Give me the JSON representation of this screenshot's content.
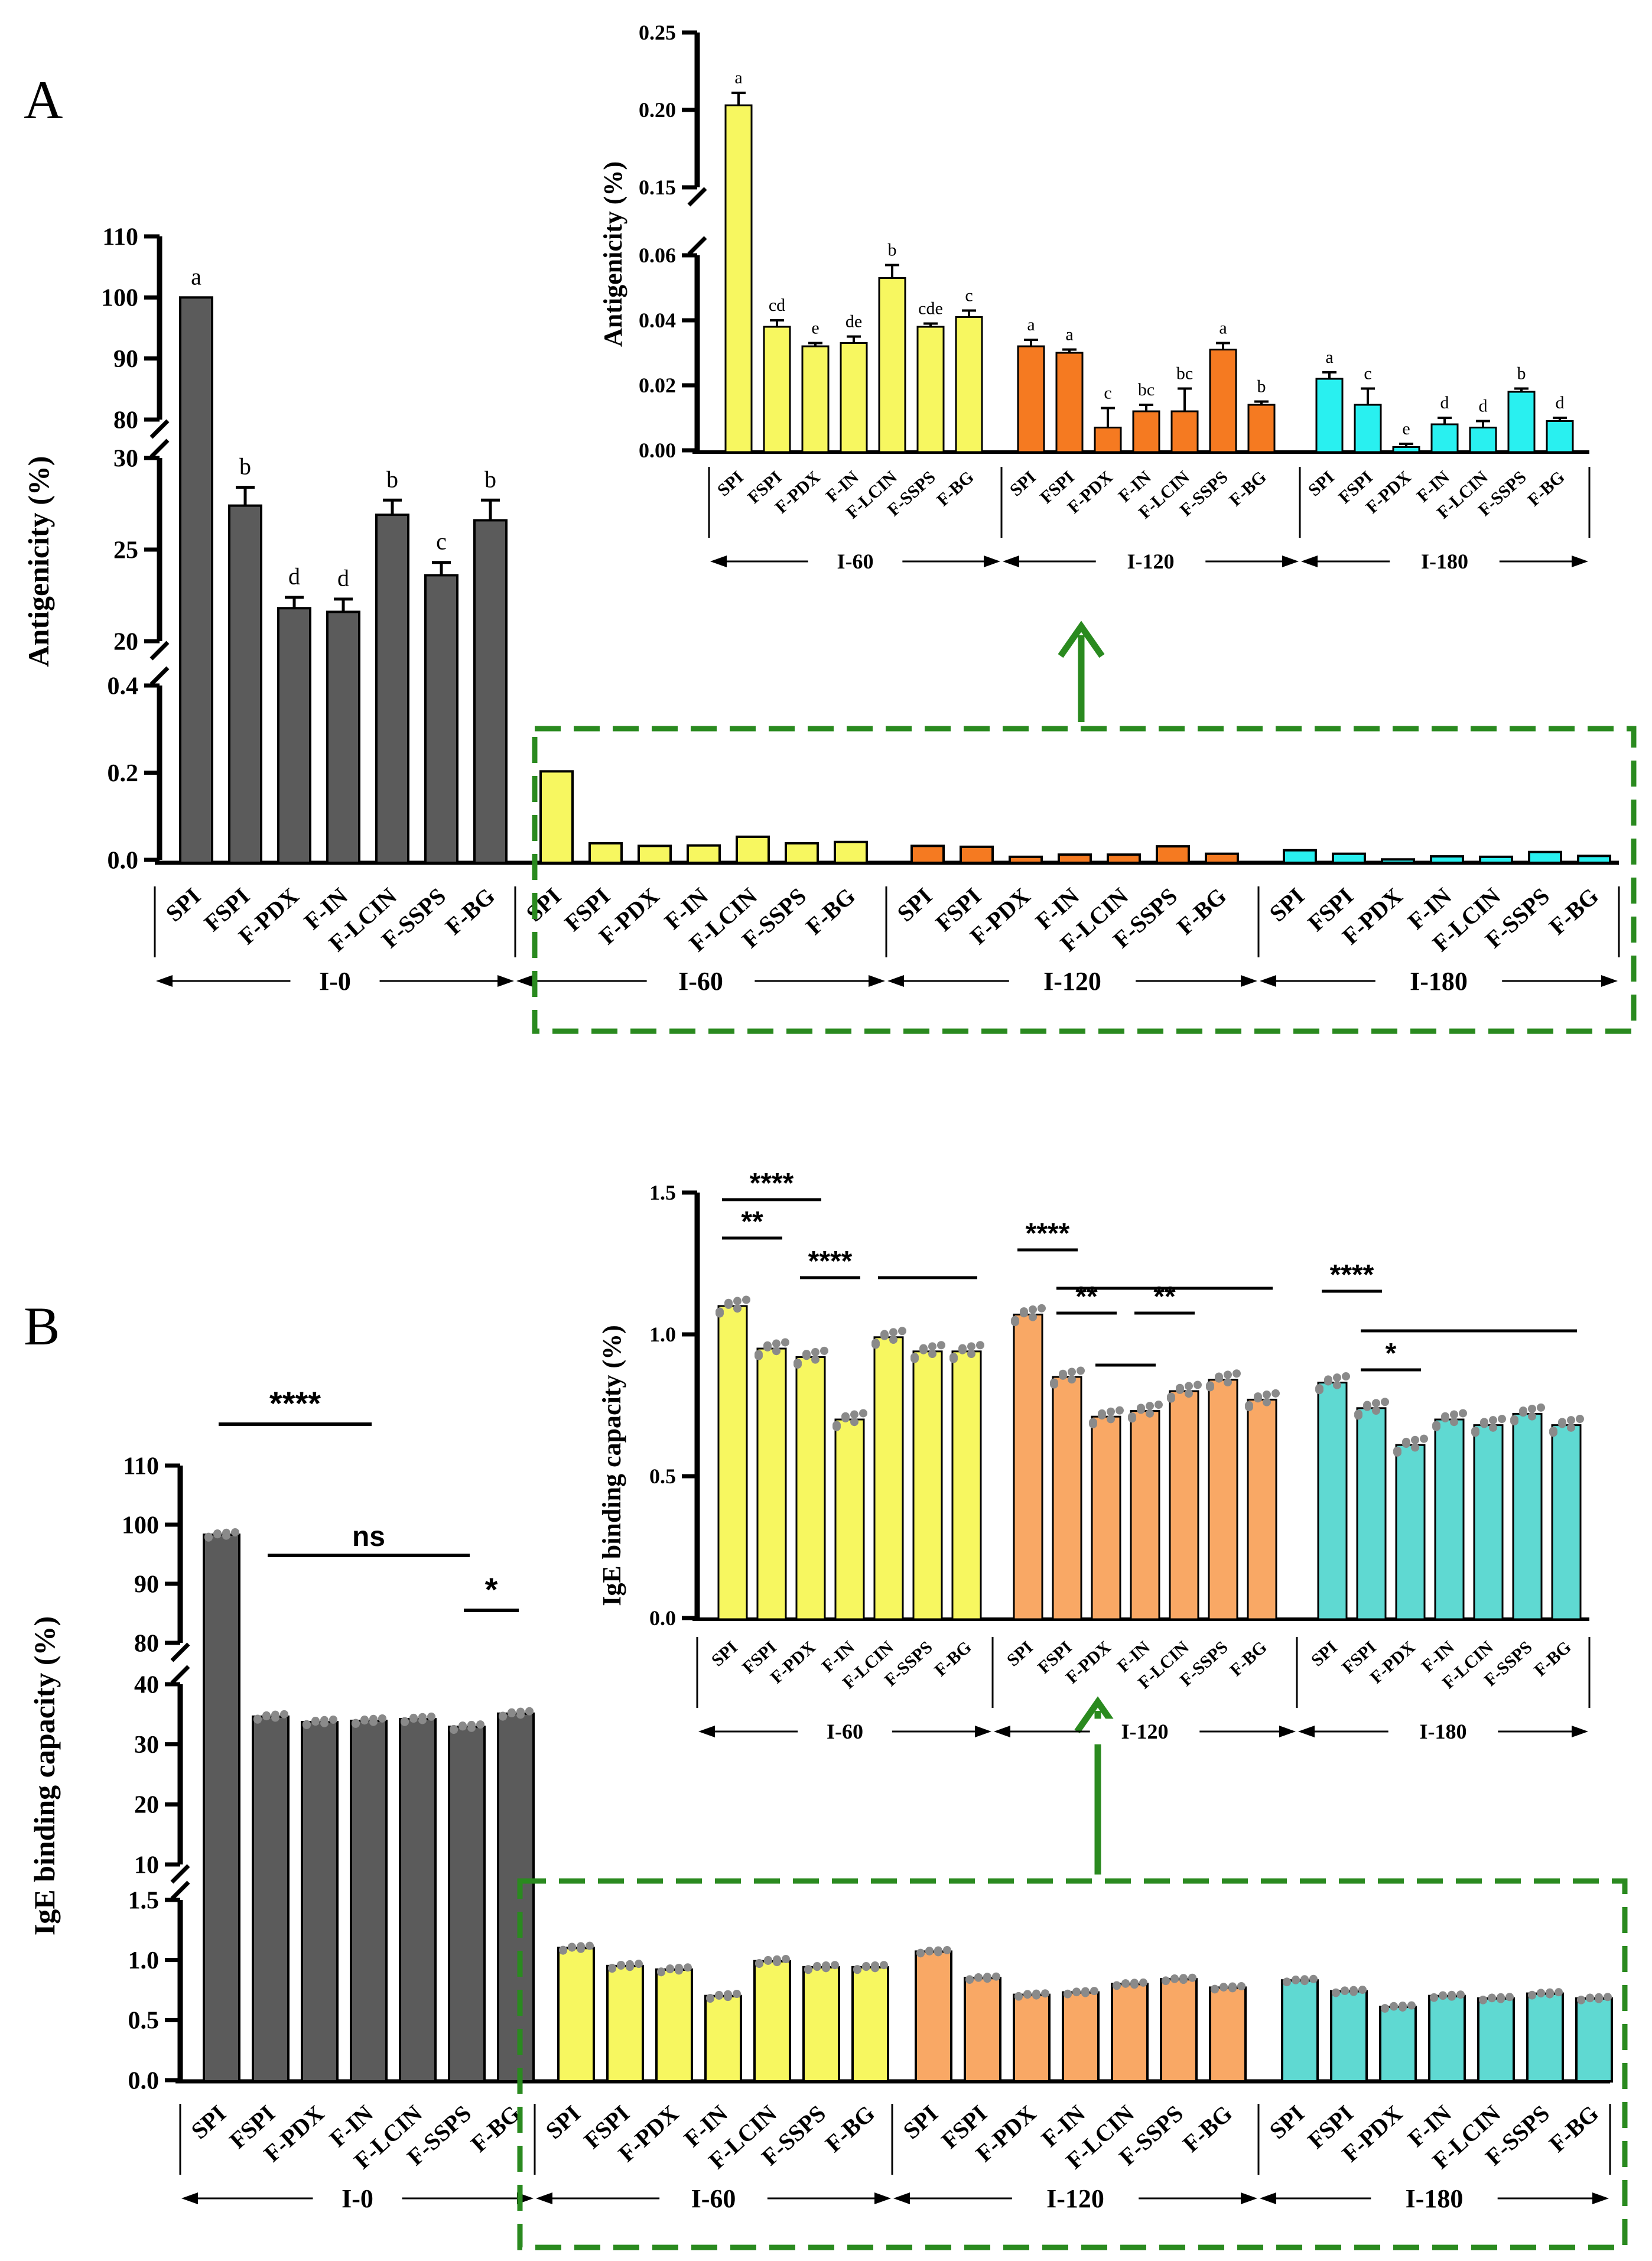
{
  "panels": [
    {
      "id": "A",
      "label": "A",
      "ylabel": "Antigenicity (%)",
      "inset_ylabel": "Antigenicity (%)"
    },
    {
      "id": "B",
      "label": "B",
      "ylabel": "IgE binding capacity (%)",
      "inset_ylabel": "IgE binding capacity (%)"
    }
  ],
  "groups": [
    "I-0",
    "I-60",
    "I-120",
    "I-180"
  ],
  "categories": [
    "SPI",
    "FSPI",
    "F-PDX",
    "F-IN",
    "F-LCIN",
    "F-SSPS",
    "F-BG"
  ],
  "colors": {
    "I-0": "#5b5b5b",
    "I-60": "#f7f760",
    "I-120": "#f57a21",
    "I-120-B": "#f9a865",
    "I-180": "#29f0f0",
    "I-180-B": "#5fd9d2",
    "highlight": "#2a8a1f",
    "dots": "#8a8a8a"
  },
  "chart_data": [
    {
      "type": "bar",
      "title": "A",
      "ylabel": "Antigenicity (%)",
      "categories": [
        "SPI",
        "FSPI",
        "F-PDX",
        "F-IN",
        "F-LCIN",
        "F-SSPS",
        "F-BG"
      ],
      "y_segments": [
        {
          "range": [
            0,
            0.4
          ],
          "ticks": [
            "0.0",
            "0.2",
            "0.4"
          ]
        },
        {
          "range": [
            20,
            30
          ],
          "ticks": [
            "20",
            "25",
            "30"
          ]
        },
        {
          "range": [
            80,
            110
          ],
          "ticks": [
            "80",
            "90",
            "100",
            "110"
          ]
        }
      ],
      "series": [
        {
          "name": "I-0",
          "values": [
            100,
            27.4,
            21.8,
            21.6,
            26.9,
            23.6,
            26.6
          ],
          "errors": [
            0,
            1.0,
            0.6,
            0.7,
            0.8,
            0.7,
            1.1
          ],
          "letters": [
            "a",
            "b",
            "d",
            "d",
            "b",
            "c",
            "b"
          ]
        },
        {
          "name": "I-60",
          "values": [
            0.203,
            0.038,
            0.032,
            0.033,
            0.053,
            0.038,
            0.041
          ],
          "errors": [
            0.008,
            0.002,
            0.001,
            0.002,
            0.004,
            0.001,
            0.002
          ],
          "letters": [
            "a",
            "cd",
            "e",
            "de",
            "b",
            "cde",
            "c"
          ]
        },
        {
          "name": "I-120",
          "values": [
            0.032,
            0.03,
            0.007,
            0.012,
            0.012,
            0.031,
            0.014
          ],
          "errors": [
            0.002,
            0.001,
            0.006,
            0.002,
            0.007,
            0.002,
            0.001
          ],
          "letters": [
            "a",
            "a",
            "c",
            "bc",
            "bc",
            "a",
            "b"
          ]
        },
        {
          "name": "I-180",
          "values": [
            0.022,
            0.014,
            0.001,
            0.008,
            0.007,
            0.018,
            0.009
          ],
          "errors": [
            0.002,
            0.005,
            0.001,
            0.002,
            0.002,
            0.001,
            0.001
          ],
          "letters": [
            "a",
            "c",
            "e",
            "d",
            "d",
            "b",
            "d"
          ]
        }
      ],
      "inset": {
        "groups": [
          "I-60",
          "I-120",
          "I-180"
        ],
        "y_segments": [
          {
            "range": [
              0,
              0.06
            ],
            "ticks": [
              "0.00",
              "0.02",
              "0.04",
              "0.06"
            ]
          },
          {
            "range": [
              0.15,
              0.25
            ],
            "ticks": [
              "0.15",
              "0.20",
              "0.25"
            ]
          }
        ]
      }
    },
    {
      "type": "bar",
      "title": "B",
      "ylabel": "IgE binding capacity (%)",
      "categories": [
        "SPI",
        "FSPI",
        "F-PDX",
        "F-IN",
        "F-LCIN",
        "F-SSPS",
        "F-BG"
      ],
      "y_segments": [
        {
          "range": [
            0,
            1.5
          ],
          "ticks": [
            "0.0",
            "0.5",
            "1.0",
            "1.5"
          ]
        },
        {
          "range": [
            10,
            40
          ],
          "ticks": [
            "10",
            "20",
            "30",
            "40"
          ]
        },
        {
          "range": [
            80,
            110
          ],
          "ticks": [
            "80",
            "90",
            "100",
            "110"
          ]
        }
      ],
      "series": [
        {
          "name": "I-0",
          "values": [
            98.3,
            34.6,
            33.7,
            33.9,
            34.2,
            32.9,
            35.1
          ]
        },
        {
          "name": "I-60",
          "values": [
            1.1,
            0.95,
            0.92,
            0.7,
            0.99,
            0.94,
            0.94
          ]
        },
        {
          "name": "I-120",
          "values": [
            1.07,
            0.85,
            0.71,
            0.73,
            0.8,
            0.84,
            0.77
          ]
        },
        {
          "name": "I-180",
          "values": [
            0.83,
            0.74,
            0.61,
            0.7,
            0.68,
            0.72,
            0.68
          ]
        }
      ],
      "significance_i0": [
        {
          "label": "****",
          "from": "SPI",
          "to": "F-IN"
        },
        {
          "label": "ns",
          "from": "FSPI",
          "to": "F-SSPS"
        },
        {
          "label": "*",
          "from": "F-SSPS",
          "to": "F-BG"
        }
      ],
      "significance_inset": [
        {
          "group": "I-60",
          "label": "****",
          "from": "SPI",
          "to": "F-PDX"
        },
        {
          "group": "I-60",
          "label": "**",
          "from": "SPI",
          "to": "FSPI"
        },
        {
          "group": "I-60",
          "label": "****",
          "from": "F-PDX",
          "to": "F-IN"
        },
        {
          "group": "I-60",
          "label": "",
          "from": "F-LCIN",
          "to": "F-BG"
        },
        {
          "group": "I-120",
          "label": "****",
          "from": "SPI",
          "to": "FSPI"
        },
        {
          "group": "I-120",
          "label": "**",
          "from": "FSPI",
          "to": "F-PDX"
        },
        {
          "group": "I-120",
          "label": "",
          "from": "FSPI",
          "to": "F-BG"
        },
        {
          "group": "I-120",
          "label": "",
          "from": "F-PDX",
          "to": "F-IN"
        },
        {
          "group": "I-120",
          "label": "**",
          "from": "F-IN",
          "to": "F-LCIN"
        },
        {
          "group": "I-180",
          "label": "****",
          "from": "SPI",
          "to": "FSPI"
        },
        {
          "group": "I-180",
          "label": "",
          "from": "FSPI",
          "to": "F-BG"
        },
        {
          "group": "I-180",
          "label": "*",
          "from": "FSPI",
          "to": "F-PDX"
        }
      ],
      "inset": {
        "groups": [
          "I-60",
          "I-120",
          "I-180"
        ],
        "y_segments": [
          {
            "range": [
              0,
              1.5
            ],
            "ticks": [
              "0.0",
              "0.5",
              "1.0",
              "1.5"
            ]
          }
        ]
      }
    }
  ]
}
